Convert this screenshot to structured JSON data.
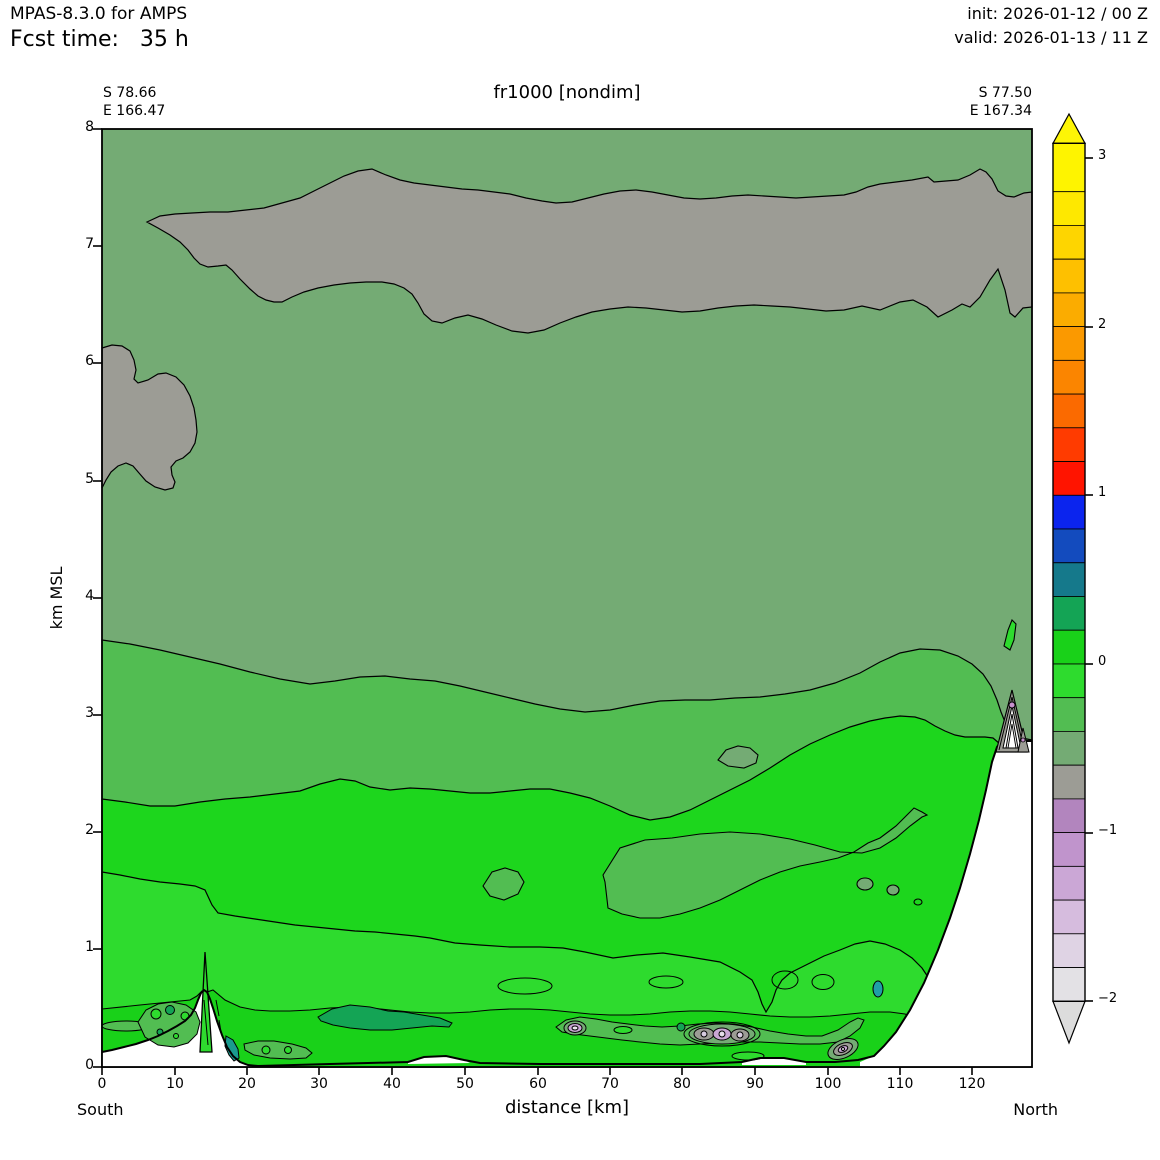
{
  "header": {
    "model": "MPAS-8.3.0 for AMPS",
    "fcst": "Fcst time:   35 h",
    "init": "init: 2026-01-12 / 00 Z",
    "valid": "valid: 2026-01-13 / 11 Z"
  },
  "plot": {
    "title": "fr1000 [nondim]",
    "corner_left_lat": "S 78.66",
    "corner_left_lon": "E 166.47",
    "corner_right_lat": "S 77.50",
    "corner_right_lon": "E 167.34",
    "xlabel": "distance [km]",
    "ylabel": "km MSL",
    "south": "South",
    "north": "North"
  },
  "axes": {
    "x_tick_labels": [
      "0",
      "10",
      "20",
      "30",
      "40",
      "50",
      "60",
      "70",
      "80",
      "90",
      "100",
      "110",
      "120"
    ],
    "y_tick_labels": [
      "0",
      "1",
      "2",
      "3",
      "4",
      "5",
      "6",
      "7",
      "8"
    ],
    "cbar_tick_labels": [
      "3",
      "2",
      "1",
      "0",
      "−1",
      "−2"
    ]
  },
  "chart_data": {
    "type": "filled-contour-cross-section",
    "title": "fr1000 [nondim]",
    "model_run": {
      "model": "MPAS-8.3.0 for AMPS",
      "forecast_hour": 35,
      "init": "2026-01-12 / 00 Z",
      "valid": "2026-01-13 / 11 Z"
    },
    "x_axis": {
      "label": "distance [km]",
      "range": [
        0,
        128
      ],
      "ticks": [
        0,
        10,
        20,
        30,
        40,
        50,
        60,
        70,
        80,
        90,
        100,
        110,
        120
      ],
      "south_end": "South",
      "north_end": "North"
    },
    "y_axis": {
      "label": "km MSL",
      "range": [
        0,
        8
      ],
      "ticks": [
        0,
        1,
        2,
        3,
        4,
        5,
        6,
        7,
        8
      ]
    },
    "endpoints": {
      "south": {
        "lat": "S 78.66",
        "lon": "E 166.47"
      },
      "north": {
        "lat": "S 77.50",
        "lon": "E 167.34"
      }
    },
    "colorbar": {
      "levels_low_to_high": [
        -2.0,
        -1.8,
        -1.6,
        -1.4,
        -1.2,
        -1.0,
        -0.8,
        -0.6,
        -0.4,
        -0.2,
        0.0,
        0.2,
        0.4,
        0.6,
        0.8,
        1.0,
        1.2,
        1.4,
        1.6,
        1.8,
        2.0,
        2.2,
        2.4,
        2.6,
        2.8,
        3.0
      ],
      "colors_low_to_high": [
        "#E3E1E5",
        "#DFD3E4",
        "#D6BCDE",
        "#CBA7D6",
        "#C094CC",
        "#B285BE",
        "#9C9C95",
        "#74AB74",
        "#52BD52",
        "#2EDB2E",
        "#19D119",
        "#14A455",
        "#15798B",
        "#134BBE",
        "#0B24EE",
        "#FF1400",
        "#FF3B00",
        "#FB6A00",
        "#FB8500",
        "#FB9900",
        "#FBAC00",
        "#FEC000",
        "#FED500",
        "#FEE800",
        "#FEF400"
      ],
      "extend_over_color": "#FDF506",
      "extend_under_color": "#DCDCDC",
      "ticks": [
        3,
        2,
        1,
        0,
        -1,
        -2
      ]
    },
    "filled_bands_visible": [
      {
        "value_interval": [
          -0.8,
          -0.6
        ],
        "color": "#9C9C95",
        "where": "gray layer ~6.3-7.6 km across full section; small blob on south edge 4.9-6.15 km"
      },
      {
        "value_interval": [
          -0.6,
          -0.4
        ],
        "color": "#74AB74",
        "where": "background above ~3.4 km and around north mountain summit"
      },
      {
        "value_interval": [
          -0.4,
          -0.2
        ],
        "color": "#52BD52",
        "where": "band ~2.25-3.4 km; embedded lens 1.0-2.2 km on north half; many small near-surface patches 0.1-0.5 km"
      },
      {
        "value_interval": [
          -0.2,
          0.2
        ],
        "color": "#2EDB2E / #19D119",
        "where": "bright green bulk below ~2.25 km down to terrain"
      },
      {
        "value_interval": [
          0.2,
          0.6
        ],
        "color": "#14A455 / #15798B",
        "where": "small sea-green/teal patches near surface, e.g. 31-49 km at ~0.35 km"
      }
    ],
    "terrain": {
      "south_coast_height_km": 0.15,
      "south_peak": {
        "distance_km": 14,
        "height_km": 0.66
      },
      "flat_section_km": [
        18,
        100
      ],
      "north_mountain": {
        "summit_distance_km": 126,
        "summit_height_km": 2.8
      }
    },
    "notable_features": [
      "tight contour knots with purple cores near surface at ~65, 82-87 and 100-102 km",
      "tight contour tangle above north mountain summit ~2.9-3.2 km",
      "thin contour spike above south peak reaching ~1 km"
    ]
  }
}
